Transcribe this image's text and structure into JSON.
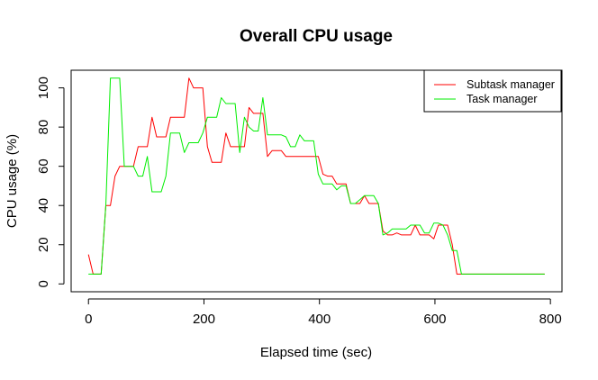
{
  "chart_data": {
    "type": "line",
    "title": "Overall CPU usage",
    "xlabel": "Elapsed time (sec)",
    "ylabel": "CPU usage (%)",
    "xlim": [
      -30,
      820
    ],
    "ylim": [
      -4,
      109
    ],
    "x_ticks": [
      0,
      200,
      400,
      600,
      800
    ],
    "y_ticks": [
      0,
      20,
      40,
      60,
      80,
      100
    ],
    "legend_position": "top-right",
    "series": [
      {
        "name": "Subtask manager",
        "color": "#ff0000",
        "points": [
          [
            0,
            15
          ],
          [
            8,
            5
          ],
          [
            15,
            5
          ],
          [
            22,
            5
          ],
          [
            30,
            40
          ],
          [
            38,
            40
          ],
          [
            46,
            55
          ],
          [
            54,
            60
          ],
          [
            62,
            60
          ],
          [
            70,
            60
          ],
          [
            78,
            60
          ],
          [
            86,
            70
          ],
          [
            94,
            70
          ],
          [
            102,
            70
          ],
          [
            110,
            85
          ],
          [
            118,
            75
          ],
          [
            126,
            75
          ],
          [
            134,
            75
          ],
          [
            142,
            85
          ],
          [
            150,
            85
          ],
          [
            158,
            85
          ],
          [
            166,
            85
          ],
          [
            174,
            105
          ],
          [
            182,
            100
          ],
          [
            190,
            100
          ],
          [
            198,
            100
          ],
          [
            206,
            70
          ],
          [
            214,
            62
          ],
          [
            222,
            62
          ],
          [
            230,
            62
          ],
          [
            238,
            77
          ],
          [
            246,
            70
          ],
          [
            254,
            70
          ],
          [
            262,
            70
          ],
          [
            270,
            70
          ],
          [
            278,
            90
          ],
          [
            286,
            87
          ],
          [
            294,
            87
          ],
          [
            302,
            87
          ],
          [
            310,
            65
          ],
          [
            318,
            68
          ],
          [
            326,
            68
          ],
          [
            334,
            68
          ],
          [
            342,
            65
          ],
          [
            350,
            65
          ],
          [
            358,
            65
          ],
          [
            366,
            65
          ],
          [
            374,
            65
          ],
          [
            382,
            65
          ],
          [
            390,
            65
          ],
          [
            398,
            65
          ],
          [
            406,
            56
          ],
          [
            414,
            55
          ],
          [
            422,
            55
          ],
          [
            430,
            51
          ],
          [
            438,
            51
          ],
          [
            446,
            51
          ],
          [
            454,
            41
          ],
          [
            462,
            41
          ],
          [
            470,
            41
          ],
          [
            478,
            45
          ],
          [
            486,
            41
          ],
          [
            494,
            41
          ],
          [
            502,
            41
          ],
          [
            510,
            27
          ],
          [
            518,
            25
          ],
          [
            526,
            25
          ],
          [
            534,
            26
          ],
          [
            542,
            25
          ],
          [
            550,
            25
          ],
          [
            558,
            25
          ],
          [
            566,
            30
          ],
          [
            574,
            25
          ],
          [
            582,
            25
          ],
          [
            590,
            25
          ],
          [
            598,
            23
          ],
          [
            606,
            30
          ],
          [
            614,
            30
          ],
          [
            622,
            30
          ],
          [
            630,
            20
          ],
          [
            638,
            5
          ],
          [
            646,
            5
          ],
          [
            790,
            5
          ]
        ]
      },
      {
        "name": "Task manager",
        "color": "#00ee00",
        "points": [
          [
            0,
            5
          ],
          [
            8,
            5
          ],
          [
            15,
            5
          ],
          [
            22,
            5
          ],
          [
            30,
            40
          ],
          [
            38,
            105
          ],
          [
            46,
            105
          ],
          [
            54,
            105
          ],
          [
            62,
            60
          ],
          [
            70,
            60
          ],
          [
            78,
            60
          ],
          [
            86,
            55
          ],
          [
            94,
            55
          ],
          [
            102,
            65
          ],
          [
            110,
            47
          ],
          [
            118,
            47
          ],
          [
            126,
            47
          ],
          [
            134,
            55
          ],
          [
            142,
            77
          ],
          [
            150,
            77
          ],
          [
            158,
            77
          ],
          [
            166,
            67
          ],
          [
            174,
            72
          ],
          [
            182,
            72
          ],
          [
            190,
            72
          ],
          [
            198,
            77
          ],
          [
            206,
            85
          ],
          [
            214,
            85
          ],
          [
            222,
            85
          ],
          [
            230,
            95
          ],
          [
            238,
            92
          ],
          [
            246,
            92
          ],
          [
            254,
            92
          ],
          [
            262,
            67
          ],
          [
            270,
            85
          ],
          [
            278,
            80
          ],
          [
            286,
            78
          ],
          [
            294,
            78
          ],
          [
            302,
            95
          ],
          [
            310,
            76
          ],
          [
            318,
            76
          ],
          [
            326,
            76
          ],
          [
            334,
            76
          ],
          [
            342,
            75
          ],
          [
            350,
            70
          ],
          [
            358,
            70
          ],
          [
            366,
            76
          ],
          [
            374,
            73
          ],
          [
            382,
            73
          ],
          [
            390,
            73
          ],
          [
            398,
            56
          ],
          [
            406,
            51
          ],
          [
            414,
            51
          ],
          [
            422,
            51
          ],
          [
            430,
            48
          ],
          [
            438,
            50
          ],
          [
            446,
            50
          ],
          [
            454,
            41
          ],
          [
            462,
            41
          ],
          [
            470,
            43
          ],
          [
            478,
            45
          ],
          [
            486,
            45
          ],
          [
            494,
            45
          ],
          [
            502,
            41
          ],
          [
            510,
            25
          ],
          [
            518,
            26
          ],
          [
            526,
            28
          ],
          [
            534,
            28
          ],
          [
            542,
            28
          ],
          [
            550,
            28
          ],
          [
            558,
            30
          ],
          [
            566,
            30
          ],
          [
            574,
            30
          ],
          [
            582,
            26
          ],
          [
            590,
            26
          ],
          [
            598,
            31
          ],
          [
            606,
            31
          ],
          [
            614,
            30
          ],
          [
            622,
            25
          ],
          [
            630,
            17
          ],
          [
            638,
            17
          ],
          [
            646,
            5
          ],
          [
            790,
            5
          ]
        ]
      }
    ]
  }
}
